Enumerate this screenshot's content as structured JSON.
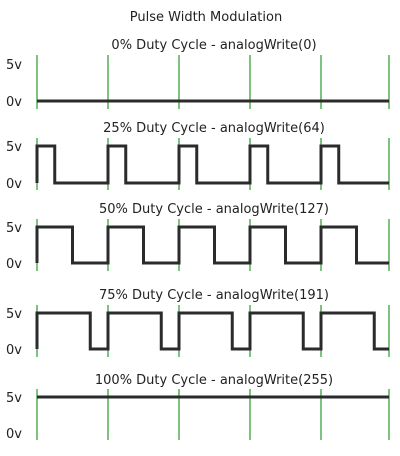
{
  "title": "Pulse Width Modulation",
  "high_label": "5v",
  "low_label": "0v",
  "colors": {
    "signal": "#2b2b2b",
    "clock": "#3aa13a",
    "text": "#222222",
    "background": "#ffffff"
  },
  "periods": 5,
  "panels": [
    {
      "title": "0% Duty Cycle - analogWrite(0)",
      "duty": 0
    },
    {
      "title": "25% Duty Cycle - analogWrite(64)",
      "duty": 0.25
    },
    {
      "title": "50% Duty Cycle - analogWrite(127)",
      "duty": 0.5
    },
    {
      "title": "75% Duty Cycle - analogWrite(191)",
      "duty": 0.75
    },
    {
      "title": "100% Duty Cycle - analogWrite(255)",
      "duty": 1
    }
  ]
}
